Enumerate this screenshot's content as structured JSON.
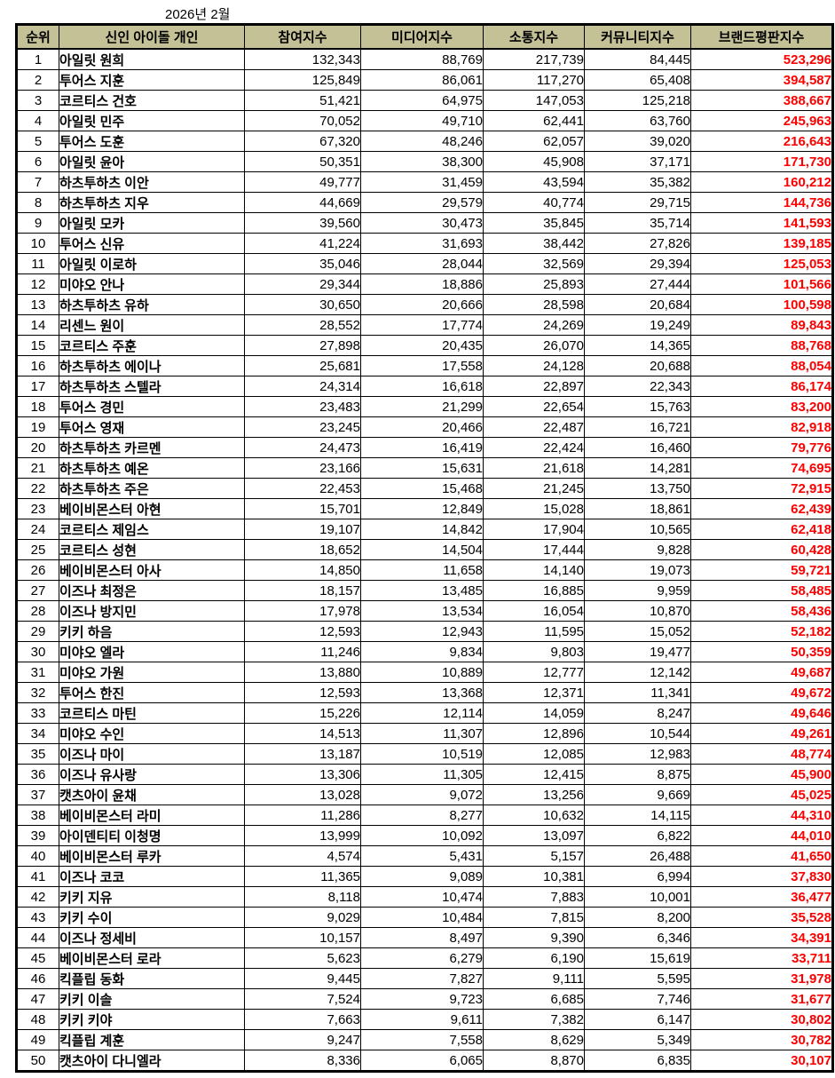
{
  "title": "2026년 2월",
  "colors": {
    "header_bg": "#c5c197",
    "border": "#000000",
    "brand_index_text": "#ff0000"
  },
  "chart_data": {
    "type": "table",
    "title": "2026년 2월",
    "columns": [
      "순위",
      "신인 아이돌 개인",
      "참여지수",
      "미디어지수",
      "소통지수",
      "커뮤니티지수",
      "브랜드평판지수"
    ],
    "rows": [
      [
        "1",
        "아일릿 원희",
        "132,343",
        "88,769",
        "217,739",
        "84,445",
        "523,296"
      ],
      [
        "2",
        "투어스 지훈",
        "125,849",
        "86,061",
        "117,270",
        "65,408",
        "394,587"
      ],
      [
        "3",
        "코르티스 건호",
        "51,421",
        "64,975",
        "147,053",
        "125,218",
        "388,667"
      ],
      [
        "4",
        "아일릿 민주",
        "70,052",
        "49,710",
        "62,441",
        "63,760",
        "245,963"
      ],
      [
        "5",
        "투어스 도훈",
        "67,320",
        "48,246",
        "62,057",
        "39,020",
        "216,643"
      ],
      [
        "6",
        "아일릿 윤아",
        "50,351",
        "38,300",
        "45,908",
        "37,171",
        "171,730"
      ],
      [
        "7",
        "하츠투하츠 이안",
        "49,777",
        "31,459",
        "43,594",
        "35,382",
        "160,212"
      ],
      [
        "8",
        "하츠투하츠 지우",
        "44,669",
        "29,579",
        "40,774",
        "29,715",
        "144,736"
      ],
      [
        "9",
        "아일릿 모카",
        "39,560",
        "30,473",
        "35,845",
        "35,714",
        "141,593"
      ],
      [
        "10",
        "투어스 신유",
        "41,224",
        "31,693",
        "38,442",
        "27,826",
        "139,185"
      ],
      [
        "11",
        "아일릿 이로하",
        "35,046",
        "28,044",
        "32,569",
        "29,394",
        "125,053"
      ],
      [
        "12",
        "미야오 안나",
        "29,344",
        "18,886",
        "25,893",
        "27,444",
        "101,566"
      ],
      [
        "13",
        "하츠투하츠 유하",
        "30,650",
        "20,666",
        "28,598",
        "20,684",
        "100,598"
      ],
      [
        "14",
        "리센느 원이",
        "28,552",
        "17,774",
        "24,269",
        "19,249",
        "89,843"
      ],
      [
        "15",
        "코르티스 주훈",
        "27,898",
        "20,435",
        "26,070",
        "14,365",
        "88,768"
      ],
      [
        "16",
        "하츠투하츠 에이나",
        "25,681",
        "17,558",
        "24,128",
        "20,688",
        "88,054"
      ],
      [
        "17",
        "하츠투하츠 스텔라",
        "24,314",
        "16,618",
        "22,897",
        "22,343",
        "86,174"
      ],
      [
        "18",
        "투어스 경민",
        "23,483",
        "21,299",
        "22,654",
        "15,763",
        "83,200"
      ],
      [
        "19",
        "투어스 영재",
        "23,245",
        "20,466",
        "22,487",
        "16,721",
        "82,918"
      ],
      [
        "20",
        "하츠투하츠 카르멘",
        "24,473",
        "16,419",
        "22,424",
        "16,460",
        "79,776"
      ],
      [
        "21",
        "하츠투하츠 예온",
        "23,166",
        "15,631",
        "21,618",
        "14,281",
        "74,695"
      ],
      [
        "22",
        "하츠투하츠 주은",
        "22,453",
        "15,468",
        "21,245",
        "13,750",
        "72,915"
      ],
      [
        "23",
        "베이비몬스터 아현",
        "15,701",
        "12,849",
        "15,028",
        "18,861",
        "62,439"
      ],
      [
        "24",
        "코르티스 제임스",
        "19,107",
        "14,842",
        "17,904",
        "10,565",
        "62,418"
      ],
      [
        "25",
        "코르티스 성현",
        "18,652",
        "14,504",
        "17,444",
        "9,828",
        "60,428"
      ],
      [
        "26",
        "베이비몬스터 아사",
        "14,850",
        "11,658",
        "14,140",
        "19,073",
        "59,721"
      ],
      [
        "27",
        "이즈나 최정은",
        "18,157",
        "13,485",
        "16,885",
        "9,959",
        "58,485"
      ],
      [
        "28",
        "이즈나 방지민",
        "17,978",
        "13,534",
        "16,054",
        "10,870",
        "58,436"
      ],
      [
        "29",
        "키키 하음",
        "12,593",
        "12,943",
        "11,595",
        "15,052",
        "52,182"
      ],
      [
        "30",
        "미야오 엘라",
        "11,246",
        "9,834",
        "9,803",
        "19,477",
        "50,359"
      ],
      [
        "31",
        "미야오 가원",
        "13,880",
        "10,889",
        "12,777",
        "12,142",
        "49,687"
      ],
      [
        "32",
        "투어스 한진",
        "12,593",
        "13,368",
        "12,371",
        "11,341",
        "49,672"
      ],
      [
        "33",
        "코르티스 마틴",
        "15,226",
        "12,114",
        "14,059",
        "8,247",
        "49,646"
      ],
      [
        "34",
        "미야오 수인",
        "14,513",
        "11,307",
        "12,896",
        "10,544",
        "49,261"
      ],
      [
        "35",
        "이즈나 마이",
        "13,187",
        "10,519",
        "12,085",
        "12,983",
        "48,774"
      ],
      [
        "36",
        "이즈나 유사랑",
        "13,306",
        "11,305",
        "12,415",
        "8,875",
        "45,900"
      ],
      [
        "37",
        "캣츠아이 윤채",
        "13,028",
        "9,072",
        "13,256",
        "9,669",
        "45,025"
      ],
      [
        "38",
        "베이비몬스터 라미",
        "11,286",
        "8,277",
        "10,632",
        "14,115",
        "44,310"
      ],
      [
        "39",
        "아이덴티티 이청명",
        "13,999",
        "10,092",
        "13,097",
        "6,822",
        "44,010"
      ],
      [
        "40",
        "베이비몬스터 루카",
        "4,574",
        "5,431",
        "5,157",
        "26,488",
        "41,650"
      ],
      [
        "41",
        "이즈나 코코",
        "11,365",
        "9,089",
        "10,381",
        "6,994",
        "37,830"
      ],
      [
        "42",
        "키키 지유",
        "8,118",
        "10,474",
        "7,883",
        "10,001",
        "36,477"
      ],
      [
        "43",
        "키키 수이",
        "9,029",
        "10,484",
        "7,815",
        "8,200",
        "35,528"
      ],
      [
        "44",
        "이즈나 정세비",
        "10,157",
        "8,497",
        "9,390",
        "6,346",
        "34,391"
      ],
      [
        "45",
        "베이비몬스터 로라",
        "5,623",
        "6,279",
        "6,190",
        "15,619",
        "33,711"
      ],
      [
        "46",
        "킥플립 동화",
        "9,445",
        "7,827",
        "9,111",
        "5,595",
        "31,978"
      ],
      [
        "47",
        "키키 이솔",
        "7,524",
        "9,723",
        "6,685",
        "7,746",
        "31,677"
      ],
      [
        "48",
        "키키 키야",
        "7,663",
        "9,611",
        "7,382",
        "6,147",
        "30,802"
      ],
      [
        "49",
        "킥플립 계훈",
        "9,247",
        "7,558",
        "8,629",
        "5,349",
        "30,782"
      ],
      [
        "50",
        "캣츠아이 다니엘라",
        "8,336",
        "6,065",
        "8,870",
        "6,835",
        "30,107"
      ]
    ]
  }
}
